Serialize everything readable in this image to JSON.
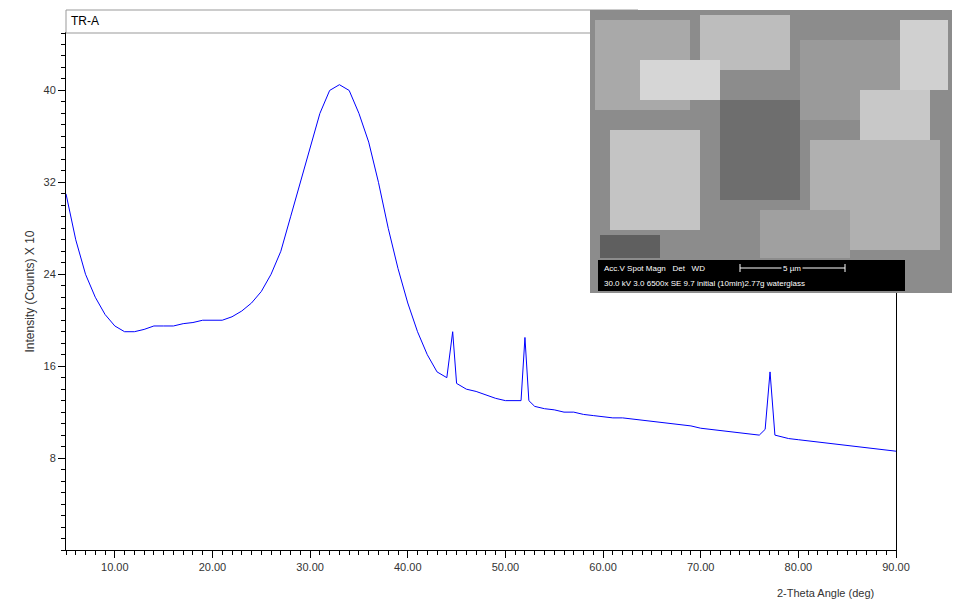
{
  "chart_data": {
    "type": "line",
    "title": "TR-A",
    "x_label": "2-Theta Angle (deg)",
    "y_label": "Intensity (Counts) X 10",
    "color": "#0000ff",
    "grid": false,
    "xlim": [
      5,
      90
    ],
    "ylim": [
      0,
      45
    ],
    "xticks": [
      {
        "value": 10,
        "label": "10.00"
      },
      {
        "value": 20,
        "label": "20.00"
      },
      {
        "value": 30,
        "label": "30.00"
      },
      {
        "value": 40,
        "label": "40.00"
      },
      {
        "value": 50,
        "label": "50.00"
      },
      {
        "value": 60,
        "label": "60.00"
      },
      {
        "value": 70,
        "label": "70.00"
      },
      {
        "value": 80,
        "label": "80.00"
      },
      {
        "value": 90,
        "label": "90.00"
      }
    ],
    "yticks": [
      8,
      16,
      24,
      32,
      40
    ],
    "x": [
      5,
      6,
      7,
      8,
      9,
      10,
      11,
      12,
      13,
      14,
      15,
      16,
      17,
      18,
      19,
      20,
      21,
      22,
      23,
      24,
      25,
      26,
      27,
      28,
      29,
      30,
      31,
      32,
      33,
      34,
      35,
      36,
      37,
      38,
      39,
      40,
      41,
      42,
      43,
      44,
      44.6,
      45,
      46,
      47,
      48,
      49,
      50,
      51,
      51.6,
      52,
      52.4,
      53,
      54,
      55,
      56,
      57,
      58,
      59,
      60,
      61,
      62,
      63,
      64,
      65,
      66,
      67,
      68,
      69,
      70,
      71,
      72,
      73,
      74,
      75,
      76,
      76.6,
      77.1,
      77.6,
      78,
      79,
      80,
      81,
      82,
      83,
      84,
      85,
      86,
      87,
      88,
      89,
      90
    ],
    "values": [
      31,
      27,
      24,
      22,
      20.5,
      19.5,
      19,
      19,
      19.2,
      19.5,
      19.5,
      19.5,
      19.7,
      19.8,
      20,
      20,
      20,
      20.3,
      20.8,
      21.5,
      22.5,
      24,
      26,
      29,
      32,
      35,
      38,
      40,
      40.5,
      40,
      38,
      35.5,
      32,
      28,
      24.5,
      21.5,
      19,
      17,
      15.5,
      15,
      19,
      14.5,
      14,
      13.8,
      13.5,
      13.2,
      13,
      13,
      13,
      18.5,
      13,
      12.5,
      12.3,
      12.2,
      12,
      12,
      11.8,
      11.7,
      11.6,
      11.5,
      11.5,
      11.4,
      11.3,
      11.2,
      11.1,
      11,
      10.9,
      10.8,
      10.6,
      10.5,
      10.4,
      10.3,
      10.2,
      10.1,
      10,
      10.5,
      15.5,
      10,
      9.9,
      9.7,
      9.6,
      9.5,
      9.4,
      9.3,
      9.2,
      9.1,
      9,
      8.9,
      8.8,
      8.7,
      8.6
    ],
    "annotations": [
      "Acc.V Spot Magn   Det   WD",
      "5 µm",
      "30.0 kV 3.0 6500x SE 9.7 initial (10min)2.77g waterglass"
    ]
  }
}
